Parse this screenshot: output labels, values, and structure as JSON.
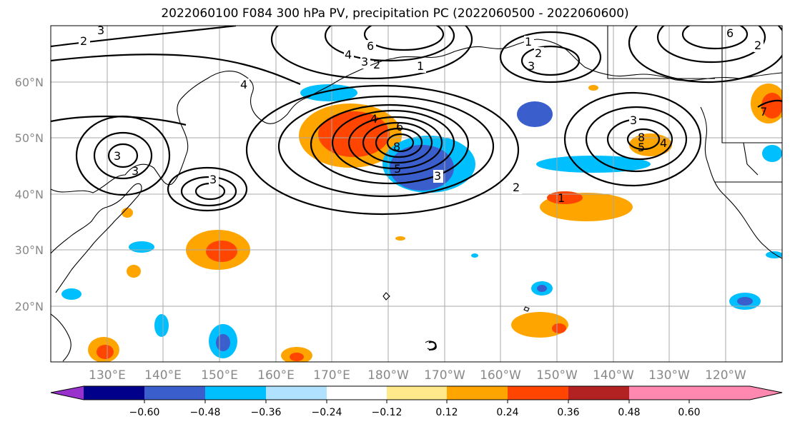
{
  "title": "2022060100 F084 300 hPa PV, precipitation PC (2022060500 - 2022060600)",
  "lat_labels": [
    "60°N",
    "50°N",
    "40°N",
    "30°N",
    "20°N"
  ],
  "lon_labels": [
    "130°E",
    "140°E",
    "150°E",
    "160°E",
    "170°E",
    "180°W",
    "170°W",
    "160°W",
    "150°W",
    "140°W",
    "130°W",
    "120°W"
  ],
  "colorbar": {
    "ticks": [
      "−0.60",
      "−0.48",
      "−0.36",
      "−0.24",
      "−0.12",
      "0.12",
      "0.24",
      "0.36",
      "0.48",
      "0.60"
    ],
    "colors": [
      "#9932cc",
      "#00008b",
      "#3a5fcd",
      "#00bfff",
      "#b0e2ff",
      "#ffffff",
      "#ffe98a",
      "#ffa500",
      "#ff4500",
      "#b22222",
      "#ff88b0"
    ]
  },
  "contour_labels": [
    "3",
    "2",
    "6",
    "4",
    "3",
    "2",
    "1",
    "1",
    "2",
    "3",
    "6",
    "2",
    "4",
    "3",
    "3",
    "4",
    "6",
    "8",
    "5",
    "3",
    "2",
    "3",
    "8",
    "5",
    "4",
    "3",
    "1",
    "7"
  ]
}
